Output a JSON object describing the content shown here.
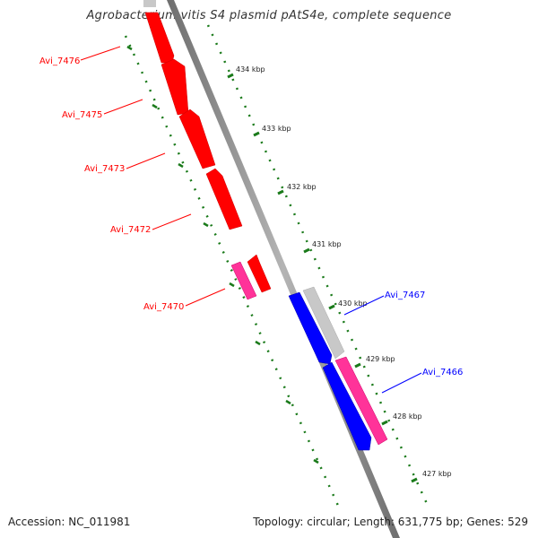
{
  "title": "Agrobacterium vitis S4 plasmid pAtS4e, complete sequence",
  "footer": {
    "accession": "Accession: NC_011981",
    "summary": "Topology: circular; Length: 631,775 bp; Genes: 529"
  },
  "colors": {
    "forward_cds": "#ff0000",
    "reverse_cds": "#0000ff",
    "rna_feature": "#ff3399",
    "backbone": "#888888",
    "tick": "#006600",
    "other": "#c8c8c8"
  },
  "scale_ticks": [
    {
      "label": "434 kbp"
    },
    {
      "label": "433 kbp"
    },
    {
      "label": "432 kbp"
    },
    {
      "label": "431 kbp"
    },
    {
      "label": "430 kbp"
    },
    {
      "label": "429 kbp"
    },
    {
      "label": "428 kbp"
    },
    {
      "label": "427 kbp"
    }
  ],
  "gene_labels": [
    {
      "name": "Avi_7476",
      "strand": "forward"
    },
    {
      "name": "Avi_7475",
      "strand": "forward"
    },
    {
      "name": "Avi_7473",
      "strand": "forward"
    },
    {
      "name": "Avi_7472",
      "strand": "forward"
    },
    {
      "name": "Avi_7470",
      "strand": "forward"
    },
    {
      "name": "Avi_7467",
      "strand": "reverse"
    },
    {
      "name": "Avi_7466",
      "strand": "reverse"
    }
  ]
}
